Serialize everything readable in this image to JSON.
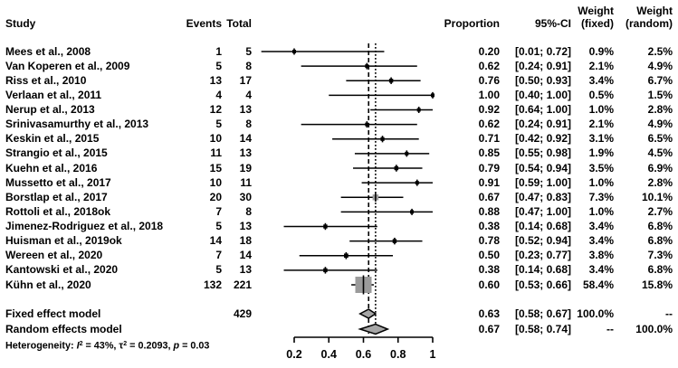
{
  "colors": {
    "line": "#000000",
    "marker_gray": "#9b9b9b",
    "marker_black": "#000000",
    "diamond_fill": "#a6a6a6",
    "background": "#ffffff"
  },
  "chart_data": {
    "type": "forest",
    "columns": {
      "study": "Study",
      "events": "Events",
      "total": "Total",
      "proportion": "Proportion",
      "ci": "95%-CI",
      "weight_fixed_l1": "Weight",
      "weight_fixed_l2": "(fixed)",
      "weight_random_l1": "Weight",
      "weight_random_l2": "(random)"
    },
    "axis": {
      "min": 0.2,
      "max": 1.0,
      "ticks": [
        0.2,
        0.4,
        0.6,
        0.8,
        1
      ],
      "tick_labels": [
        "0.2",
        "0.4",
        "0.6",
        "0.8",
        "1"
      ],
      "reference_fixed": 0.63,
      "reference_random": 0.67
    },
    "studies": [
      {
        "label": "Mees et al., 2008",
        "events": "1",
        "total": "5",
        "proportion": 0.2,
        "prop_label": "0.20",
        "ci_low": 0.01,
        "ci_high": 0.72,
        "ci_label": "[0.01; 0.72]",
        "w_fixed": "0.9%",
        "w_random": "2.5%"
      },
      {
        "label": "Van Koperen et al., 2009",
        "events": "5",
        "total": "8",
        "proportion": 0.62,
        "prop_label": "0.62",
        "ci_low": 0.24,
        "ci_high": 0.91,
        "ci_label": "[0.24; 0.91]",
        "w_fixed": "2.1%",
        "w_random": "4.9%"
      },
      {
        "label": "Riss et al., 2010",
        "events": "13",
        "total": "17",
        "proportion": 0.76,
        "prop_label": "0.76",
        "ci_low": 0.5,
        "ci_high": 0.93,
        "ci_label": "[0.50; 0.93]",
        "w_fixed": "3.4%",
        "w_random": "6.7%"
      },
      {
        "label": "Verlaan et al., 2011",
        "events": "4",
        "total": "4",
        "proportion": 1.0,
        "prop_label": "1.00",
        "ci_low": 0.4,
        "ci_high": 1.0,
        "ci_label": "[0.40; 1.00]",
        "w_fixed": "0.5%",
        "w_random": "1.5%"
      },
      {
        "label": "Nerup et al., 2013",
        "events": "12",
        "total": "13",
        "proportion": 0.92,
        "prop_label": "0.92",
        "ci_low": 0.64,
        "ci_high": 1.0,
        "ci_label": "[0.64; 1.00]",
        "w_fixed": "1.0%",
        "w_random": "2.8%"
      },
      {
        "label": "Srinivasamurthy et al., 2013",
        "events": "5",
        "total": "8",
        "proportion": 0.62,
        "prop_label": "0.62",
        "ci_low": 0.24,
        "ci_high": 0.91,
        "ci_label": "[0.24; 0.91]",
        "w_fixed": "2.1%",
        "w_random": "4.9%"
      },
      {
        "label": "Keskin et al., 2015",
        "events": "10",
        "total": "14",
        "proportion": 0.71,
        "prop_label": "0.71",
        "ci_low": 0.42,
        "ci_high": 0.92,
        "ci_label": "[0.42; 0.92]",
        "w_fixed": "3.1%",
        "w_random": "6.5%"
      },
      {
        "label": "Strangio et al., 2015",
        "events": "11",
        "total": "13",
        "proportion": 0.85,
        "prop_label": "0.85",
        "ci_low": 0.55,
        "ci_high": 0.98,
        "ci_label": "[0.55; 0.98]",
        "w_fixed": "1.9%",
        "w_random": "4.5%"
      },
      {
        "label": "Kuehn et al., 2016",
        "events": "15",
        "total": "19",
        "proportion": 0.79,
        "prop_label": "0.79",
        "ci_low": 0.54,
        "ci_high": 0.94,
        "ci_label": "[0.54; 0.94]",
        "w_fixed": "3.5%",
        "w_random": "6.9%"
      },
      {
        "label": "Mussetto et al., 2017",
        "events": "10",
        "total": "11",
        "proportion": 0.91,
        "prop_label": "0.91",
        "ci_low": 0.59,
        "ci_high": 1.0,
        "ci_label": "[0.59; 1.00]",
        "w_fixed": "1.0%",
        "w_random": "2.8%"
      },
      {
        "label": "Borstlap et al., 2017",
        "events": "20",
        "total": "30",
        "proportion": 0.67,
        "prop_label": "0.67",
        "ci_low": 0.47,
        "ci_high": 0.83,
        "ci_label": "[0.47; 0.83]",
        "w_fixed": "7.3%",
        "w_random": "10.1%"
      },
      {
        "label": "Rottoli et al., 2018ok",
        "events": "7",
        "total": "8",
        "proportion": 0.88,
        "prop_label": "0.88",
        "ci_low": 0.47,
        "ci_high": 1.0,
        "ci_label": "[0.47; 1.00]",
        "w_fixed": "1.0%",
        "w_random": "2.7%"
      },
      {
        "label": "Jimenez-Rodriguez et al., 2018",
        "events": "5",
        "total": "13",
        "proportion": 0.38,
        "prop_label": "0.38",
        "ci_low": 0.14,
        "ci_high": 0.68,
        "ci_label": "[0.14; 0.68]",
        "w_fixed": "3.4%",
        "w_random": "6.8%"
      },
      {
        "label": "Huisman et al., 2019ok",
        "events": "14",
        "total": "18",
        "proportion": 0.78,
        "prop_label": "0.78",
        "ci_low": 0.52,
        "ci_high": 0.94,
        "ci_label": "[0.52; 0.94]",
        "w_fixed": "3.4%",
        "w_random": "6.8%"
      },
      {
        "label": "Wereen et al., 2020",
        "events": "7",
        "total": "14",
        "proportion": 0.5,
        "prop_label": "0.50",
        "ci_low": 0.23,
        "ci_high": 0.77,
        "ci_label": "[0.23; 0.77]",
        "w_fixed": "3.8%",
        "w_random": "7.3%"
      },
      {
        "label": "Kantowski et al., 2020",
        "events": "5",
        "total": "13",
        "proportion": 0.38,
        "prop_label": "0.38",
        "ci_low": 0.14,
        "ci_high": 0.68,
        "ci_label": "[0.14; 0.68]",
        "w_fixed": "3.4%",
        "w_random": "6.8%"
      },
      {
        "label": "Kühn et al., 2020",
        "events": "132",
        "total": "221",
        "proportion": 0.6,
        "prop_label": "0.60",
        "ci_low": 0.53,
        "ci_high": 0.66,
        "ci_label": "[0.53; 0.66]",
        "w_fixed": "58.4%",
        "w_random": "15.8%"
      }
    ],
    "fixed_model": {
      "label": "Fixed effect model",
      "total": "429",
      "proportion": 0.63,
      "prop_label": "0.63",
      "ci_low": 0.58,
      "ci_high": 0.67,
      "ci_label": "[0.58; 0.67]",
      "w_fixed": "100.0%",
      "w_random": "--"
    },
    "random_model": {
      "label": "Random effects model",
      "proportion": 0.67,
      "prop_label": "0.67",
      "ci_low": 0.58,
      "ci_high": 0.74,
      "ci_label": "[0.58; 0.74]",
      "w_fixed": "--",
      "w_random": "100.0%"
    },
    "heterogeneity": {
      "prefix": "Heterogeneity: ",
      "stat1": "I",
      "sup1": "2",
      "seg1": " = 43%, ",
      "stat2": "τ",
      "sup2": "2",
      "seg2": " = 0.2093, ",
      "stat3": "p",
      "seg3": " = 0.03"
    }
  }
}
